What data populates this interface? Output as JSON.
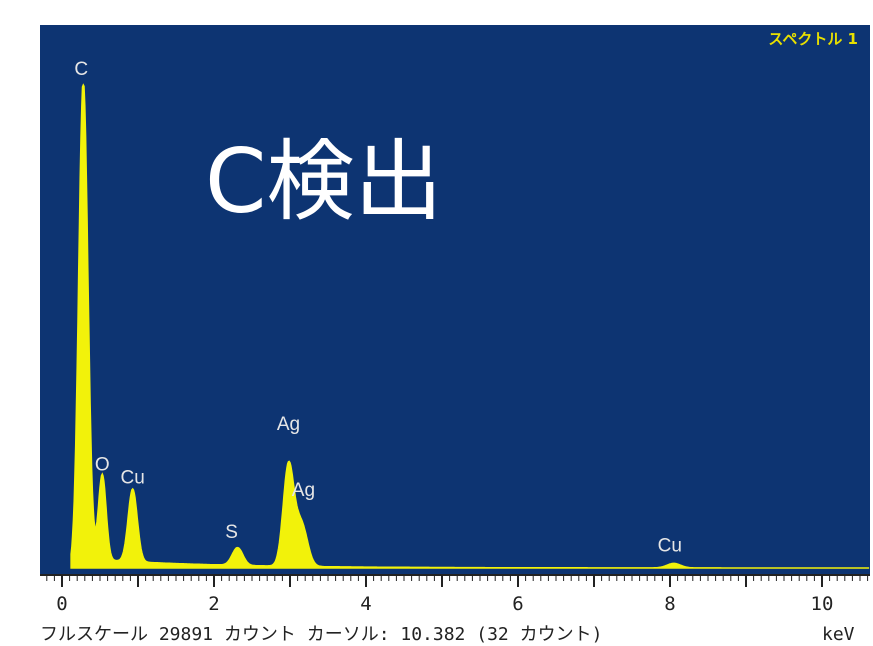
{
  "overlay_title": "C検出",
  "spectrum_label": "スペクトル 1",
  "status_line": "フルスケール 29891 カウント カーソル: 10.382 (32 カウント)",
  "colors": {
    "plot_background": "#0d3472",
    "trace": "#f2f20a",
    "peak_label": "#e6e6e6",
    "spectrum_label": "#e8e000"
  },
  "chart_data": {
    "type": "area",
    "title": "",
    "xlabel": "keV",
    "ylabel": "",
    "xlim": [
      -0.3,
      10.7
    ],
    "ylim": [
      0,
      30000
    ],
    "x_ticks": [
      0,
      2,
      4,
      6,
      8,
      10
    ],
    "full_scale_counts": 29891,
    "cursor_keV": 10.382,
    "cursor_counts": 32,
    "peaks": [
      {
        "label": "C",
        "energy": 0.28,
        "counts": 29891
      },
      {
        "label": "O",
        "energy": 0.53,
        "counts": 5300
      },
      {
        "label": "Cu",
        "energy": 0.93,
        "counts": 4500
      },
      {
        "label": "S",
        "energy": 2.31,
        "counts": 1100
      },
      {
        "label": "Ag",
        "energy": 2.98,
        "counts": 6200
      },
      {
        "label": "Ag",
        "energy": 3.15,
        "counts": 2600
      },
      {
        "label": "Cu",
        "energy": 8.05,
        "counts": 280
      }
    ]
  }
}
